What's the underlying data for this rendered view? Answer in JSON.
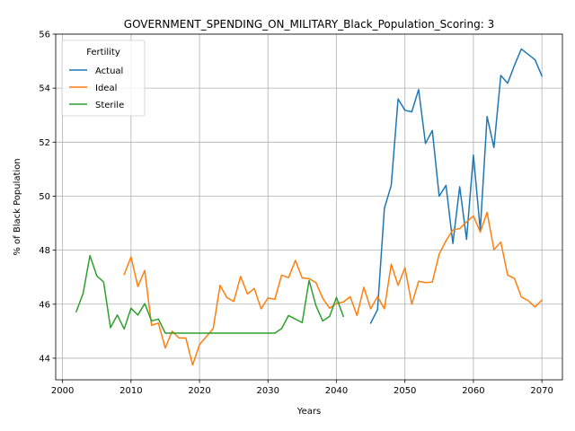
{
  "chart_data": {
    "type": "line",
    "title": "GOVERNMENT_SPENDING_ON_MILITARY_Black_Population_Scoring: 3",
    "xlabel": "Years",
    "ylabel": "% of Black Population",
    "xlim": [
      1999,
      2073
    ],
    "ylim": [
      43.2,
      56.0
    ],
    "xticks": [
      2000,
      2010,
      2020,
      2030,
      2040,
      2050,
      2060,
      2070
    ],
    "yticks": [
      44,
      46,
      48,
      50,
      52,
      54,
      56
    ],
    "grid": true,
    "legend": {
      "title": "Fertility",
      "placement": "top-left"
    },
    "series": [
      {
        "name": "Actual",
        "color": "#1f77b4",
        "x": [
          2045,
          2046,
          2047,
          2048,
          2049,
          2050,
          2051,
          2052,
          2053,
          2054,
          2055,
          2056,
          2057,
          2058,
          2059,
          2060,
          2061,
          2062,
          2063,
          2064,
          2065,
          2066,
          2067,
          2068,
          2069,
          2070
        ],
        "y": [
          45.3,
          45.8,
          49.55,
          50.4,
          53.6,
          53.18,
          53.12,
          53.95,
          51.95,
          52.43,
          50.0,
          50.4,
          48.25,
          50.35,
          48.4,
          51.52,
          48.75,
          52.95,
          51.8,
          54.47,
          54.18,
          54.85,
          55.45,
          55.25,
          55.05,
          54.45
        ]
      },
      {
        "name": "Ideal",
        "color": "#ff7f0e",
        "x": [
          2009,
          2010,
          2011,
          2012,
          2013,
          2014,
          2015,
          2016,
          2017,
          2018,
          2019,
          2020,
          2021,
          2022,
          2023,
          2024,
          2025,
          2026,
          2027,
          2028,
          2029,
          2030,
          2031,
          2032,
          2033,
          2034,
          2035,
          2036,
          2037,
          2038,
          2039,
          2040,
          2041,
          2042,
          2043,
          2044,
          2045,
          2046,
          2047,
          2048,
          2049,
          2050,
          2051,
          2052,
          2053,
          2054,
          2055,
          2056,
          2057,
          2058,
          2059,
          2060,
          2061,
          2062,
          2063,
          2064,
          2065,
          2066,
          2067,
          2068,
          2069,
          2070
        ],
        "y": [
          47.1,
          47.75,
          46.65,
          47.25,
          45.22,
          45.3,
          44.38,
          45.0,
          44.75,
          44.75,
          43.75,
          44.5,
          44.8,
          45.1,
          46.7,
          46.25,
          46.1,
          47.03,
          46.38,
          46.58,
          45.83,
          46.23,
          46.18,
          47.08,
          46.98,
          47.62,
          46.97,
          46.95,
          46.8,
          46.22,
          45.85,
          46.03,
          46.08,
          46.28,
          45.58,
          46.63,
          45.83,
          46.28,
          45.83,
          47.48,
          46.7,
          47.35,
          46.0,
          46.85,
          46.8,
          46.82,
          47.85,
          48.35,
          48.75,
          48.8,
          49.05,
          49.27,
          48.67,
          49.4,
          48.02,
          48.3,
          47.08,
          46.95,
          46.27,
          46.13,
          45.9,
          46.15
        ]
      },
      {
        "name": "Sterile",
        "color": "#2ca02c",
        "x": [
          2002,
          2003,
          2004,
          2005,
          2006,
          2007,
          2008,
          2009,
          2010,
          2011,
          2012,
          2013,
          2014,
          2015,
          2016,
          2017,
          2018,
          2019,
          2020,
          2021,
          2022,
          2023,
          2024,
          2025,
          2026,
          2027,
          2028,
          2029,
          2030,
          2031,
          2032,
          2033,
          2034,
          2035,
          2036,
          2037,
          2038,
          2039,
          2040,
          2041
        ],
        "y": [
          45.72,
          46.4,
          47.8,
          47.05,
          46.82,
          45.13,
          45.6,
          45.08,
          45.85,
          45.6,
          46.02,
          45.38,
          45.45,
          44.93,
          44.93,
          44.93,
          44.93,
          44.93,
          44.93,
          44.93,
          44.93,
          44.93,
          44.93,
          44.93,
          44.93,
          44.93,
          44.93,
          44.93,
          44.93,
          44.93,
          45.1,
          45.58,
          45.45,
          45.32,
          46.88,
          45.95,
          45.38,
          45.55,
          46.25,
          45.55
        ]
      }
    ]
  }
}
